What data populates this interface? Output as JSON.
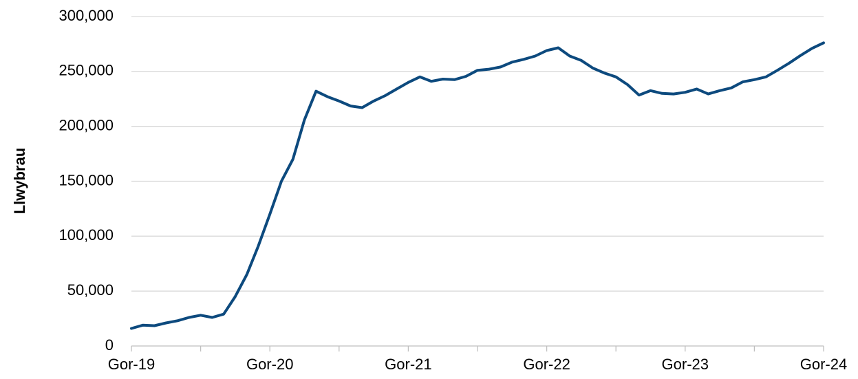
{
  "chart_data": {
    "type": "line",
    "y_label": "Llwybrau",
    "categories": [
      "Gor-19",
      null,
      null,
      null,
      null,
      null,
      null,
      null,
      null,
      null,
      null,
      null,
      "Gor-20",
      null,
      null,
      null,
      null,
      null,
      null,
      null,
      null,
      null,
      null,
      null,
      "Gor-21",
      null,
      null,
      null,
      null,
      null,
      null,
      null,
      null,
      null,
      null,
      null,
      "Gor-22",
      null,
      null,
      null,
      null,
      null,
      null,
      null,
      null,
      null,
      null,
      null,
      "Gor-23",
      null,
      null,
      null,
      null,
      null,
      null,
      null,
      null,
      null,
      null,
      null,
      "Gor-24"
    ],
    "series": [
      {
        "name": "Llwybrau",
        "color": "#0d4a7e",
        "values": [
          16000,
          19000,
          18500,
          21000,
          23000,
          26000,
          28000,
          26000,
          29000,
          45000,
          65000,
          91000,
          120000,
          150000,
          170000,
          206000,
          232000,
          227000,
          223000,
          218500,
          217000,
          223000,
          228000,
          234000,
          240000,
          245000,
          241000,
          243000,
          242500,
          245500,
          251000,
          252000,
          254000,
          258500,
          261000,
          264000,
          269000,
          271500,
          264000,
          260000,
          253000,
          248500,
          245000,
          238000,
          228500,
          232500,
          230000,
          229500,
          231000,
          234000,
          229500,
          232500,
          235000,
          240500,
          242500,
          245000,
          251000,
          257500,
          264500,
          271000,
          276000
        ]
      }
    ],
    "ylim": [
      0,
      300000
    ],
    "yticks": [
      0,
      {
        "value": 50000,
        "label": "50,000"
      },
      {
        "value": 100000,
        "label": "100,000"
      },
      {
        "value": 150000,
        "label": "150,000"
      },
      {
        "value": 200000,
        "label": "200,000"
      },
      {
        "value": 250000,
        "label": "250,000"
      },
      {
        "value": 300000,
        "label": "300,000"
      }
    ],
    "grid": true
  }
}
